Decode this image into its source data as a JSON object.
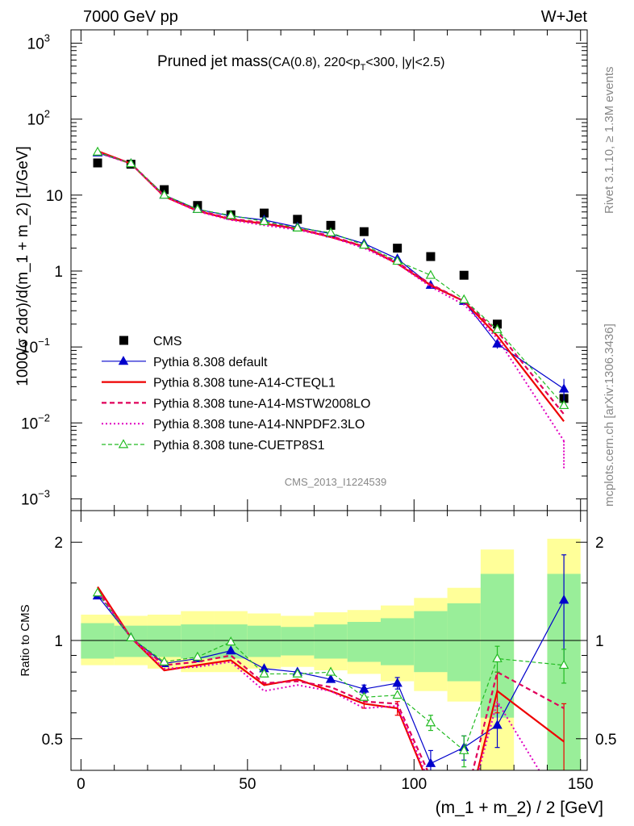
{
  "header": {
    "energy_label": "7000 GeV pp",
    "process_label": "W+Jet",
    "plot_title_main": "Pruned jet mass",
    "plot_title_sub_a": "(CA(0.8), 220<p",
    "plot_title_sub_b": "T",
    "plot_title_sub_c": "<300, |y|<2.5)",
    "analysis_id": "CMS_2013_I1224539",
    "rivet_label": "Rivet 3.1.10, ≥ 1.3M events",
    "mcplots_label": "mcplots.cern.ch [arXiv:1306.3436]"
  },
  "colors": {
    "cms": "#000000",
    "default": "#0000cc",
    "a14_cteql1": "#ee0000",
    "a14_mstw": "#e0005a",
    "a14_nnpdf": "#e000c0",
    "cuetp8s1": "#22bb22",
    "band_inner": "#99ee99",
    "band_outer": "#ffff99"
  },
  "chart_data": [
    {
      "type": "scatter",
      "title": "Pruned jet mass(CA(0.8), 220<pT<300, |y|<2.5)",
      "ylabel": "1000/σ 2dσ)/d(m_1 + m_2) [1/GeV]",
      "yscale": "log",
      "ylim": [
        0.0007,
        1500
      ],
      "xlim": [
        -3,
        152
      ],
      "y_ticks": [
        {
          "v": 0.001,
          "base": "10",
          "exp": "−3"
        },
        {
          "v": 0.01,
          "base": "10",
          "exp": "−2"
        },
        {
          "v": 0.1,
          "base": "10",
          "exp": "−1"
        },
        {
          "v": 1,
          "base": "1",
          "exp": ""
        },
        {
          "v": 10,
          "base": "10",
          "exp": ""
        },
        {
          "v": 100,
          "base": "10",
          "exp": "2"
        },
        {
          "v": 1000,
          "base": "10",
          "exp": "3"
        }
      ],
      "x": [
        5,
        15,
        25,
        35,
        45,
        55,
        65,
        75,
        85,
        95,
        105,
        115,
        125,
        145
      ],
      "series": [
        {
          "key": "cms",
          "name": "CMS",
          "style": "square",
          "values": [
            26.5,
            25.5,
            11.8,
            7.3,
            5.5,
            5.8,
            4.8,
            4.0,
            3.3,
            2.0,
            1.55,
            0.88,
            0.2,
            0.021
          ]
        },
        {
          "key": "default",
          "name": "Pythia 8.308 default",
          "style": "line-filled-triangle",
          "values": [
            36,
            26,
            10,
            6.5,
            5.3,
            4.7,
            3.8,
            3.1,
            2.3,
            1.45,
            0.65,
            0.4,
            0.11,
            0.028
          ],
          "errors": [
            0,
            0,
            0,
            0,
            0,
            0,
            0,
            0,
            0,
            0,
            0,
            0,
            0.015,
            0.01
          ]
        },
        {
          "key": "a14_cteql1",
          "name": "Pythia 8.308 tune-A14-CTEQL1",
          "style": "line-solid",
          "values": [
            38,
            26,
            9.6,
            6.2,
            4.8,
            4.2,
            3.6,
            2.8,
            2.1,
            1.25,
            0.65,
            0.4,
            0.14,
            0.0105
          ]
        },
        {
          "key": "a14_mstw",
          "name": "Pythia 8.308 tune-A14-MSTW2008LO",
          "style": "line-dashed",
          "values": [
            37,
            26,
            9.9,
            6.3,
            4.9,
            4.3,
            3.6,
            2.9,
            2.1,
            1.3,
            0.67,
            0.4,
            0.16,
            0.013
          ]
        },
        {
          "key": "a14_nnpdf",
          "name": "Pythia 8.308 tune-A14-NNPDF2.3LO",
          "style": "line-dotted",
          "values": [
            36,
            26,
            9.6,
            6.1,
            4.7,
            4.0,
            3.5,
            2.8,
            2.0,
            1.25,
            0.62,
            0.36,
            0.13,
            0.0058
          ]
        },
        {
          "key": "cuetp8s1",
          "name": "Pythia 8.308 tune-CUETP8S1",
          "style": "line-dashed-open-triangle",
          "values": [
            37,
            26,
            10,
            6.5,
            5.4,
            4.5,
            3.7,
            3.2,
            2.2,
            1.35,
            0.88,
            0.42,
            0.17,
            0.017
          ]
        }
      ]
    },
    {
      "type": "line",
      "ylabel": "Ratio to CMS",
      "xlabel": "(m_1 + m_2) / 2 [GeV]",
      "yscale": "log",
      "ylim": [
        0.4,
        2.5
      ],
      "xlim": [
        -3,
        152
      ],
      "y_ticks": [
        0.5,
        1,
        2
      ],
      "x_ticks": [
        0,
        50,
        100,
        150
      ],
      "bands": [
        {
          "x0": 0,
          "x1": 10,
          "inner": [
            0.88,
            1.13
          ],
          "outer": [
            0.84,
            1.2
          ]
        },
        {
          "x0": 10,
          "x1": 20,
          "inner": [
            0.89,
            1.11
          ],
          "outer": [
            0.84,
            1.19
          ]
        },
        {
          "x0": 20,
          "x1": 30,
          "inner": [
            0.89,
            1.11
          ],
          "outer": [
            0.82,
            1.2
          ]
        },
        {
          "x0": 30,
          "x1": 40,
          "inner": [
            0.88,
            1.12
          ],
          "outer": [
            0.8,
            1.23
          ]
        },
        {
          "x0": 40,
          "x1": 50,
          "inner": [
            0.88,
            1.12
          ],
          "outer": [
            0.8,
            1.23
          ]
        },
        {
          "x0": 50,
          "x1": 60,
          "inner": [
            0.89,
            1.11
          ],
          "outer": [
            0.82,
            1.21
          ]
        },
        {
          "x0": 60,
          "x1": 70,
          "inner": [
            0.9,
            1.1
          ],
          "outer": [
            0.83,
            1.19
          ]
        },
        {
          "x0": 70,
          "x1": 80,
          "inner": [
            0.88,
            1.12
          ],
          "outer": [
            0.81,
            1.22
          ]
        },
        {
          "x0": 80,
          "x1": 90,
          "inner": [
            0.86,
            1.14
          ],
          "outer": [
            0.79,
            1.24
          ]
        },
        {
          "x0": 90,
          "x1": 100,
          "inner": [
            0.84,
            1.17
          ],
          "outer": [
            0.75,
            1.28
          ]
        },
        {
          "x0": 100,
          "x1": 110,
          "inner": [
            0.8,
            1.23
          ],
          "outer": [
            0.7,
            1.35
          ]
        },
        {
          "x0": 110,
          "x1": 120,
          "inner": [
            0.75,
            1.3
          ],
          "outer": [
            0.65,
            1.45
          ]
        },
        {
          "x0": 120,
          "x1": 130,
          "inner": [
            0.58,
            1.6
          ],
          "outer": [
            0.4,
            1.9
          ]
        },
        {
          "x0": 140,
          "x1": 150,
          "inner": [
            0.4,
            1.6
          ],
          "outer": [
            0.4,
            2.05
          ]
        }
      ],
      "x": [
        5,
        15,
        25,
        35,
        45,
        55,
        65,
        75,
        85,
        95,
        105,
        115,
        125,
        145
      ],
      "series": [
        {
          "key": "default",
          "name": "Pythia 8.308 default",
          "style": "line-filled-triangle",
          "values": [
            1.37,
            1.02,
            0.85,
            0.88,
            0.93,
            0.82,
            0.8,
            0.76,
            0.71,
            0.74,
            0.42,
            0.47,
            0.55,
            1.33
          ],
          "errors": [
            0,
            0,
            0,
            0,
            0,
            0,
            0,
            0,
            0.02,
            0.03,
            0.04,
            0.04,
            0.08,
            0.5
          ]
        },
        {
          "key": "a14_cteql1",
          "name": "Pythia 8.308 tune-A14-CTEQL1",
          "style": "line-solid",
          "values": [
            1.46,
            1.02,
            0.81,
            0.84,
            0.87,
            0.73,
            0.76,
            0.7,
            0.64,
            0.62,
            0.35,
            0.27,
            0.7,
            0.49
          ],
          "errors": [
            0,
            0,
            0,
            0,
            0,
            0,
            0,
            0,
            0.02,
            0.03,
            0.04,
            0.05,
            0.1,
            0.15
          ]
        },
        {
          "key": "a14_mstw",
          "name": "Pythia 8.308 tune-A14-MSTW2008LO",
          "style": "line-dashed",
          "values": [
            1.43,
            1.02,
            0.84,
            0.86,
            0.9,
            0.74,
            0.75,
            0.72,
            0.65,
            0.64,
            0.38,
            0.31,
            0.8,
            0.62
          ]
        },
        {
          "key": "a14_nnpdf",
          "name": "Pythia 8.308 tune-A14-NNPDF2.3LO",
          "style": "line-dotted",
          "values": [
            1.4,
            1.02,
            0.82,
            0.83,
            0.86,
            0.7,
            0.73,
            0.7,
            0.62,
            0.63,
            0.36,
            0.27,
            0.65,
            0.3
          ]
        },
        {
          "key": "cuetp8s1",
          "name": "Pythia 8.308 tune-CUETP8S1",
          "style": "line-dashed-open-triangle",
          "values": [
            1.4,
            1.02,
            0.86,
            0.89,
            0.99,
            0.79,
            0.79,
            0.8,
            0.67,
            0.68,
            0.56,
            0.46,
            0.88,
            0.84
          ],
          "errors": [
            0,
            0,
            0,
            0,
            0,
            0,
            0,
            0,
            0,
            0,
            0.03,
            0.05,
            0.08,
            0.1
          ]
        }
      ]
    }
  ]
}
